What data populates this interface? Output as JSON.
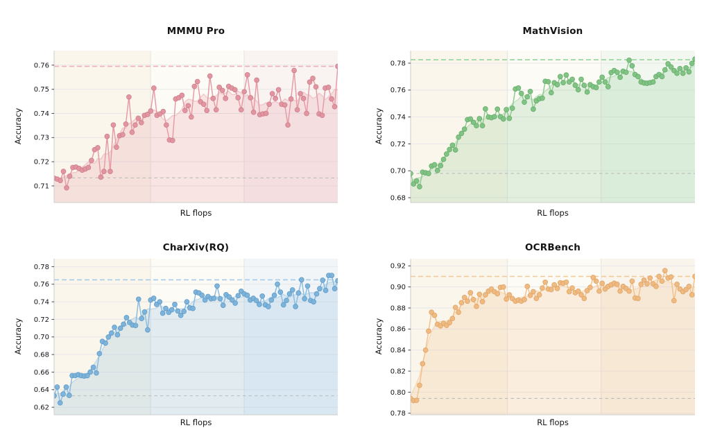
{
  "palette": {
    "figure_background": "#ffffff",
    "band_fractions": [
      0.34,
      0.67
    ],
    "band_colors": [
      "#faf6ec",
      "#fdfbf5"
    ],
    "grid_horizontal": "#e7e7e7",
    "grid_vertical": "#e3e3e0",
    "spine": "#cccccc",
    "tick_mark": "#444444",
    "text": "#141414",
    "baseline_dash": "#bcbcbc"
  },
  "chart_data": [
    {
      "type": "line+scatter",
      "title": "MMMU Pro",
      "xlabel": "RL flops",
      "ylabel": "Accuracy",
      "xticks": [],
      "yticks": [
        0.71,
        0.72,
        0.73,
        0.74,
        0.75,
        0.76
      ],
      "ytick_labels": [
        "0.71",
        "0.72",
        "0.73",
        "0.74",
        "0.75",
        "0.76"
      ],
      "ylim": [
        0.7031,
        0.766
      ],
      "dashed_top_value": 0.7595,
      "dashed_baseline_value": 0.7133,
      "colors": {
        "line": "#e69ca6",
        "marker": "#e194a0",
        "marker_edge": "#d07f8c",
        "dashed": "#efacb6",
        "fill": "rgba(224,140,153,0.20)",
        "band3": "#f9f3f1"
      },
      "values": [
        0.7132,
        0.7128,
        0.7122,
        0.716,
        0.7092,
        0.714,
        0.7176,
        0.7178,
        0.7172,
        0.7165,
        0.717,
        0.7176,
        0.7205,
        0.725,
        0.7258,
        0.7136,
        0.716,
        0.7305,
        0.716,
        0.7352,
        0.726,
        0.7308,
        0.7312,
        0.7356,
        0.7468,
        0.7322,
        0.7352,
        0.738,
        0.7362,
        0.7392,
        0.7396,
        0.741,
        0.7505,
        0.7392,
        0.7398,
        0.7408,
        0.7352,
        0.729,
        0.7288,
        0.746,
        0.7465,
        0.7475,
        0.7412,
        0.7432,
        0.7385,
        0.7512,
        0.7532,
        0.7448,
        0.7438,
        0.7412,
        0.7555,
        0.7462,
        0.7415,
        0.7508,
        0.7495,
        0.7462,
        0.7512,
        0.7505,
        0.7498,
        0.7465,
        0.7415,
        0.749,
        0.756,
        0.7465,
        0.7405,
        0.7538,
        0.7395,
        0.7398,
        0.74,
        0.7438,
        0.7482,
        0.7462,
        0.7498,
        0.7438,
        0.7435,
        0.7352,
        0.746,
        0.7578,
        0.7415,
        0.7482,
        0.7462,
        0.74,
        0.753,
        0.7545,
        0.751,
        0.7398,
        0.7392,
        0.7505,
        0.7508,
        0.746,
        0.7428,
        0.7595
      ]
    },
    {
      "type": "line+scatter",
      "title": "MathVision",
      "xlabel": "RL flops",
      "ylabel": "Accuracy",
      "xticks": [],
      "yticks": [
        0.68,
        0.7,
        0.72,
        0.74,
        0.76,
        0.78
      ],
      "ytick_labels": [
        "0.68",
        "0.70",
        "0.72",
        "0.74",
        "0.76",
        "0.78"
      ],
      "ylim": [
        0.6764,
        0.7893
      ],
      "dashed_top_value": 0.7825,
      "dashed_baseline_value": 0.698,
      "colors": {
        "line": "#8fca91",
        "marker": "#80c384",
        "marker_edge": "#65ae6a",
        "dashed": "#96d39a",
        "fill": "rgba(124,195,128,0.20)",
        "band3": "#f2f7f0"
      },
      "values": [
        0.698,
        0.6902,
        0.6925,
        0.6882,
        0.699,
        0.6985,
        0.698,
        0.7035,
        0.7045,
        0.7002,
        0.7038,
        0.7085,
        0.7125,
        0.7158,
        0.719,
        0.7155,
        0.725,
        0.7278,
        0.731,
        0.738,
        0.7385,
        0.736,
        0.7335,
        0.7388,
        0.7335,
        0.746,
        0.74,
        0.7395,
        0.7402,
        0.7458,
        0.7402,
        0.7385,
        0.7455,
        0.739,
        0.7465,
        0.7608,
        0.7615,
        0.7575,
        0.751,
        0.755,
        0.759,
        0.7458,
        0.752,
        0.7535,
        0.754,
        0.7665,
        0.7662,
        0.758,
        0.7655,
        0.764,
        0.77,
        0.7655,
        0.7712,
        0.766,
        0.768,
        0.7635,
        0.7602,
        0.768,
        0.7635,
        0.7585,
        0.764,
        0.7625,
        0.7618,
        0.766,
        0.7695,
        0.766,
        0.7625,
        0.773,
        0.7745,
        0.7732,
        0.7695,
        0.774,
        0.7732,
        0.7822,
        0.778,
        0.7715,
        0.77,
        0.766,
        0.7652,
        0.765,
        0.7655,
        0.766,
        0.77,
        0.7715,
        0.77,
        0.775,
        0.7795,
        0.7772,
        0.7745,
        0.7725,
        0.776,
        0.7725,
        0.7765,
        0.7735,
        0.7798,
        0.783
      ]
    },
    {
      "type": "line+scatter",
      "title": "CharXiv(RQ)",
      "xlabel": "RL flops",
      "ylabel": "Accuracy",
      "xticks": [],
      "yticks": [
        0.62,
        0.64,
        0.66,
        0.68,
        0.7,
        0.72,
        0.74,
        0.76,
        0.78
      ],
      "ytick_labels": [
        "0.62",
        "0.64",
        "0.66",
        "0.68",
        "0.70",
        "0.72",
        "0.74",
        "0.76",
        "0.78"
      ],
      "ylim": [
        0.6114,
        0.789
      ],
      "dashed_top_value": 0.765,
      "dashed_baseline_value": 0.633,
      "colors": {
        "line": "#8cbce0",
        "marker": "#7db3da",
        "marker_edge": "#609dcb",
        "dashed": "#a7cbe8",
        "fill": "rgba(120,175,217,0.20)",
        "band3": "#f1f5f8"
      },
      "values": [
        0.633,
        0.643,
        0.625,
        0.635,
        0.643,
        0.6335,
        0.656,
        0.656,
        0.657,
        0.656,
        0.6555,
        0.656,
        0.66,
        0.6655,
        0.659,
        0.681,
        0.695,
        0.693,
        0.7,
        0.7045,
        0.711,
        0.7025,
        0.71,
        0.7145,
        0.722,
        0.7165,
        0.7135,
        0.713,
        0.743,
        0.721,
        0.7285,
        0.708,
        0.742,
        0.744,
        0.737,
        0.74,
        0.727,
        0.7325,
        0.728,
        0.731,
        0.737,
        0.7295,
        0.7245,
        0.729,
        0.74,
        0.733,
        0.7325,
        0.751,
        0.75,
        0.7475,
        0.742,
        0.746,
        0.7435,
        0.744,
        0.758,
        0.7435,
        0.736,
        0.748,
        0.7455,
        0.742,
        0.7385,
        0.747,
        0.752,
        0.749,
        0.7475,
        0.742,
        0.744,
        0.7415,
        0.737,
        0.7465,
        0.7365,
        0.7345,
        0.742,
        0.7475,
        0.76,
        0.751,
        0.7365,
        0.7415,
        0.749,
        0.7535,
        0.7345,
        0.75,
        0.765,
        0.7435,
        0.758,
        0.7415,
        0.74,
        0.749,
        0.755,
        0.7645,
        0.753,
        0.77,
        0.77,
        0.755,
        0.764
      ]
    },
    {
      "type": "line+scatter",
      "title": "OCRBench",
      "xlabel": "RL flops",
      "ylabel": "Accuracy",
      "xticks": [],
      "yticks": [
        0.78,
        0.8,
        0.82,
        0.84,
        0.86,
        0.88,
        0.9,
        0.92
      ],
      "ytick_labels": [
        "0.78",
        "0.80",
        "0.82",
        "0.84",
        "0.86",
        "0.88",
        "0.90",
        "0.92"
      ],
      "ylim": [
        0.7785,
        0.9268
      ],
      "dashed_top_value": 0.91,
      "dashed_baseline_value": 0.794,
      "colors": {
        "line": "#f2c28e",
        "marker": "#efba81",
        "marker_edge": "#e2a566",
        "dashed": "#f4c893",
        "fill": "rgba(238,184,127,0.20)",
        "band3": "#f9f4ec"
      },
      "values": [
        0.794,
        0.792,
        0.7922,
        0.8065,
        0.827,
        0.84,
        0.858,
        0.876,
        0.873,
        0.8645,
        0.863,
        0.8655,
        0.8635,
        0.866,
        0.87,
        0.8805,
        0.876,
        0.885,
        0.89,
        0.8865,
        0.8945,
        0.888,
        0.8815,
        0.893,
        0.886,
        0.8925,
        0.896,
        0.898,
        0.8955,
        0.8935,
        0.8995,
        0.9,
        0.8885,
        0.8925,
        0.889,
        0.8865,
        0.8875,
        0.8865,
        0.888,
        0.9005,
        0.892,
        0.8955,
        0.889,
        0.8925,
        0.899,
        0.9045,
        0.898,
        0.8975,
        0.902,
        0.8985,
        0.904,
        0.9035,
        0.9045,
        0.8955,
        0.899,
        0.8945,
        0.896,
        0.8925,
        0.889,
        0.8965,
        0.8995,
        0.909,
        0.9055,
        0.896,
        0.9035,
        0.898,
        0.9005,
        0.902,
        0.9035,
        0.9025,
        0.896,
        0.9005,
        0.8985,
        0.896,
        0.9055,
        0.8895,
        0.889,
        0.9025,
        0.9065,
        0.903,
        0.9085,
        0.903,
        0.9005,
        0.91,
        0.9055,
        0.9155,
        0.9085,
        0.9095,
        0.887,
        0.9025,
        0.898,
        0.8955,
        0.8975,
        0.9005,
        0.8925,
        0.91
      ]
    }
  ]
}
